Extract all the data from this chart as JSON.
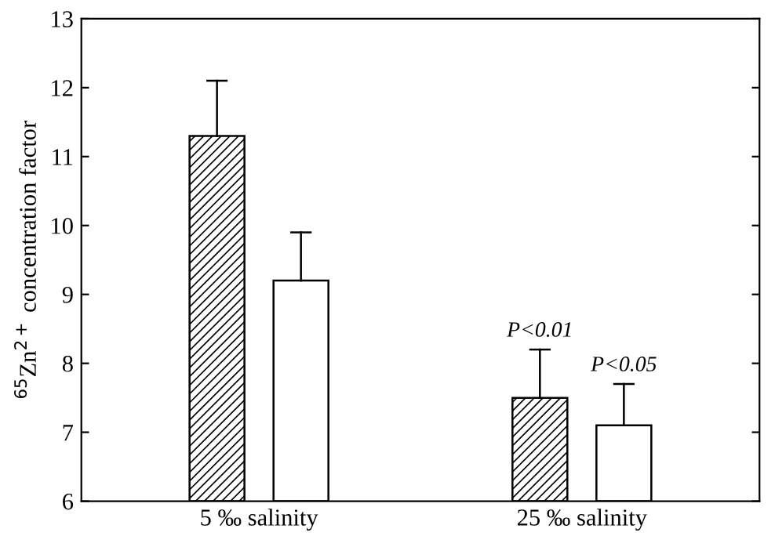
{
  "chart_data": {
    "type": "bar",
    "ylabel": "$^{65}$Zn$^{2+}$ concentration factor",
    "categories": [
      "5 ‰ salinity",
      "25 ‰ salinity"
    ],
    "series": [
      {
        "color": "#000000",
        "values": [
          11.3,
          7.5
        ],
        "errors": [
          [
            11.3,
            12.1
          ],
          [
            7.5,
            8.2
          ]
        ]
      },
      {
        "color": "#ffffff",
        "values": [
          9.2,
          7.1
        ],
        "errors": [
          [
            9.2,
            9.9
          ],
          [
            7.1,
            7.7
          ]
        ]
      }
    ],
    "ylim": [
      6,
      13
    ],
    "yticks": [
      6,
      7,
      8,
      9,
      10,
      11,
      12,
      13
    ],
    "grid": false,
    "legend": false,
    "annotations": [
      "P<0.01",
      "P<0.05"
    ]
  }
}
